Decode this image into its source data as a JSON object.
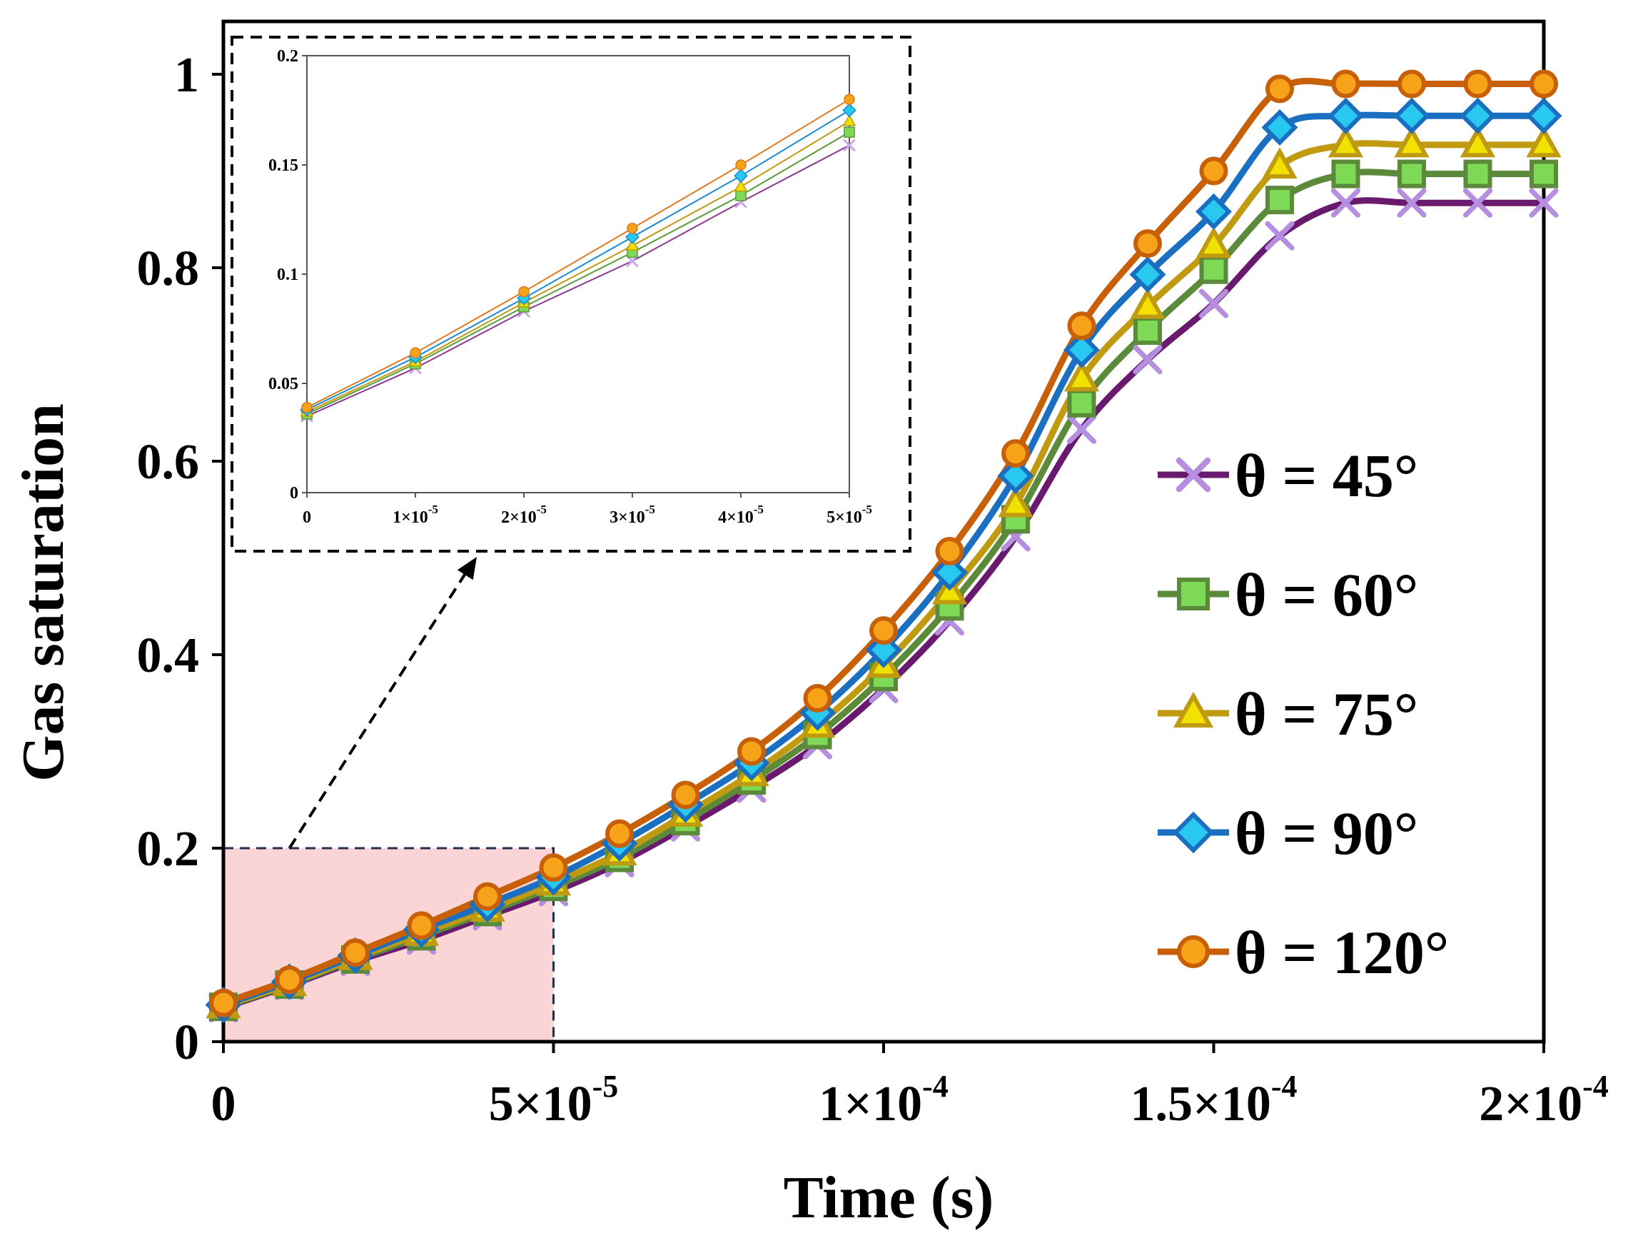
{
  "chart_data": [
    {
      "type": "line",
      "title": "",
      "xlabel": "Time (s)",
      "ylabel": "Gas saturation",
      "xlim": [
        0,
        0.0002
      ],
      "ylim": [
        0,
        1.0
      ],
      "x_ticks": [
        {
          "value": 0,
          "mantissa": "0",
          "exponent": ""
        },
        {
          "value": 5e-05,
          "mantissa": "5×10",
          "exponent": "-5"
        },
        {
          "value": 0.0001,
          "mantissa": "1×10",
          "exponent": "-4"
        },
        {
          "value": 0.00015,
          "mantissa": "1.5×10",
          "exponent": "-4"
        },
        {
          "value": 0.0002,
          "mantissa": "2×10",
          "exponent": "-4"
        }
      ],
      "y_ticks": [
        {
          "value": 0,
          "label": "0"
        },
        {
          "value": 0.2,
          "label": "0.2"
        },
        {
          "value": 0.4,
          "label": "0.4"
        },
        {
          "value": 0.6,
          "label": "0.6"
        },
        {
          "value": 0.8,
          "label": "0.8"
        },
        {
          "value": 1.0,
          "label": "1"
        }
      ],
      "grid": false,
      "legend_position": "right",
      "x": [
        0,
        1e-05,
        2e-05,
        3e-05,
        4e-05,
        5e-05,
        6e-05,
        7e-05,
        8e-05,
        9e-05,
        0.0001,
        0.00011,
        0.00012,
        0.00013,
        0.00014,
        0.00015,
        0.00016,
        0.00017,
        0.00018,
        0.00019,
        0.0002
      ],
      "series": [
        {
          "name": "θ = 45°",
          "line_color": "#6a1a6e",
          "marker": "x",
          "marker_color": "#b58ee0",
          "values": [
            0.035,
            0.058,
            0.083,
            0.105,
            0.13,
            0.155,
            0.185,
            0.222,
            0.262,
            0.307,
            0.365,
            0.435,
            0.522,
            0.633,
            0.705,
            0.763,
            0.833,
            0.867,
            0.867,
            0.867,
            0.867
          ]
        },
        {
          "name": "θ = 60°",
          "line_color": "#5a8a3a",
          "marker": "square",
          "marker_color": "#7ed957",
          "values": [
            0.036,
            0.059,
            0.085,
            0.109,
            0.134,
            0.16,
            0.19,
            0.228,
            0.27,
            0.317,
            0.377,
            0.45,
            0.54,
            0.66,
            0.735,
            0.798,
            0.87,
            0.897,
            0.897,
            0.897,
            0.897
          ]
        },
        {
          "name": "θ = 75°",
          "line_color": "#c09a10",
          "marker": "triangle",
          "marker_color": "#f2e000",
          "values": [
            0.037,
            0.06,
            0.087,
            0.112,
            0.137,
            0.164,
            0.195,
            0.235,
            0.277,
            0.327,
            0.389,
            0.465,
            0.555,
            0.685,
            0.76,
            0.823,
            0.905,
            0.927,
            0.927,
            0.927,
            0.927
          ]
        },
        {
          "name": "θ = 90°",
          "line_color": "#1a6fc0",
          "marker": "diamond",
          "marker_color": "#29c8f0",
          "values": [
            0.038,
            0.062,
            0.089,
            0.116,
            0.142,
            0.17,
            0.205,
            0.245,
            0.288,
            0.34,
            0.405,
            0.485,
            0.585,
            0.715,
            0.793,
            0.858,
            0.945,
            0.957,
            0.957,
            0.957,
            0.957
          ]
        },
        {
          "name": "θ = 120°",
          "line_color": "#c8600a",
          "marker": "circle",
          "marker_color": "#f7a31a",
          "values": [
            0.04,
            0.064,
            0.092,
            0.12,
            0.15,
            0.18,
            0.215,
            0.255,
            0.3,
            0.355,
            0.425,
            0.507,
            0.608,
            0.74,
            0.825,
            0.9,
            0.985,
            0.99,
            0.99,
            0.99,
            0.99
          ]
        }
      ],
      "highlight_region": {
        "x": [
          0,
          5e-05
        ],
        "y": [
          0,
          0.2
        ],
        "fill": "#fbd5d5"
      }
    },
    {
      "type": "line",
      "title": "",
      "xlabel": "",
      "ylabel": "",
      "xlim": [
        0,
        5e-05
      ],
      "ylim": [
        0,
        0.2
      ],
      "x_ticks": [
        {
          "value": 0,
          "mantissa": "0",
          "exponent": ""
        },
        {
          "value": 1e-05,
          "mantissa": "1×10",
          "exponent": "-5"
        },
        {
          "value": 2e-05,
          "mantissa": "2×10",
          "exponent": "-5"
        },
        {
          "value": 3e-05,
          "mantissa": "3×10",
          "exponent": "-5"
        },
        {
          "value": 4e-05,
          "mantissa": "4×10",
          "exponent": "-5"
        },
        {
          "value": 5e-05,
          "mantissa": "5×10",
          "exponent": "-5"
        }
      ],
      "y_ticks": [
        {
          "value": 0,
          "label": "0"
        },
        {
          "value": 0.05,
          "label": "0.05"
        },
        {
          "value": 0.1,
          "label": "0.1"
        },
        {
          "value": 0.15,
          "label": "0.15"
        },
        {
          "value": 0.2,
          "label": "0.2"
        }
      ],
      "grid": false,
      "x": [
        0,
        1e-05,
        2e-05,
        3e-05,
        4e-05,
        5e-05
      ],
      "series": [
        {
          "name": "θ = 45°",
          "line_color": "#8a3a8e",
          "marker": "x",
          "marker_color": "#c8a8e8",
          "values": [
            0.035,
            0.057,
            0.083,
            0.106,
            0.133,
            0.159
          ]
        },
        {
          "name": "θ = 60°",
          "line_color": "#5a9a3a",
          "marker": "square",
          "marker_color": "#7ed957",
          "values": [
            0.036,
            0.059,
            0.085,
            0.11,
            0.136,
            0.165
          ]
        },
        {
          "name": "θ = 75°",
          "line_color": "#c09a10",
          "marker": "triangle",
          "marker_color": "#f2e000",
          "values": [
            0.037,
            0.06,
            0.087,
            0.113,
            0.14,
            0.17
          ]
        },
        {
          "name": "θ = 90°",
          "line_color": "#1a8ad0",
          "marker": "diamond",
          "marker_color": "#29c8f0",
          "values": [
            0.038,
            0.062,
            0.089,
            0.117,
            0.145,
            0.175
          ]
        },
        {
          "name": "θ = 120°",
          "line_color": "#e07a20",
          "marker": "circle",
          "marker_color": "#f7a31a",
          "values": [
            0.039,
            0.064,
            0.092,
            0.121,
            0.15,
            0.18
          ]
        }
      ]
    }
  ]
}
